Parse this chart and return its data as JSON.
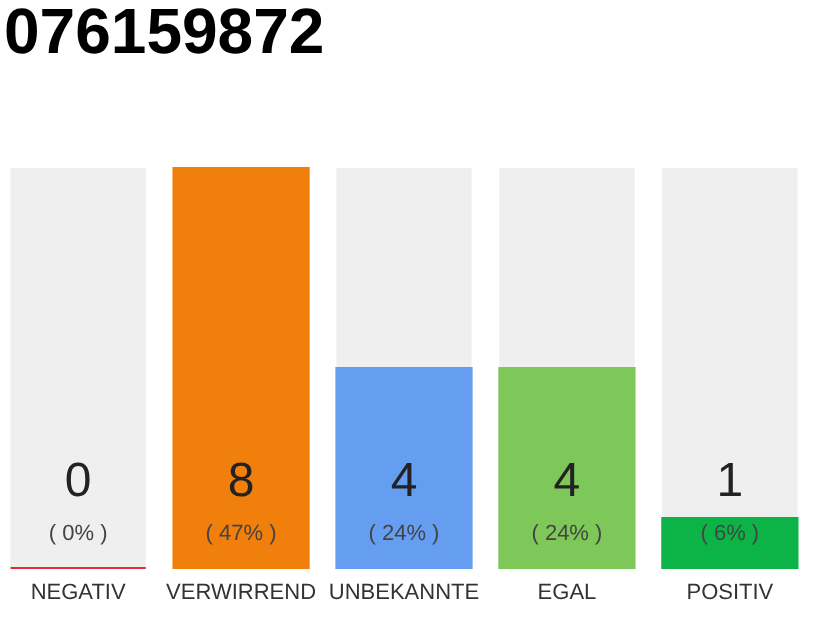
{
  "chart_data": {
    "type": "bar",
    "title": "076159872",
    "categories": [
      "NEGATIV",
      "VERWIRREND",
      "UNBEKANNTE",
      "EGAL",
      "POSITIV"
    ],
    "values": [
      0,
      8,
      4,
      4,
      1
    ],
    "colors": [
      "#e8283c",
      "#f07f0c",
      "#659df0",
      "#7ec85a",
      "#0cb447"
    ],
    "data_labels": true,
    "annotations": [
      "( 0% )",
      "( 47% )",
      "( 24% )",
      "( 24% )",
      "( 6% )"
    ]
  }
}
